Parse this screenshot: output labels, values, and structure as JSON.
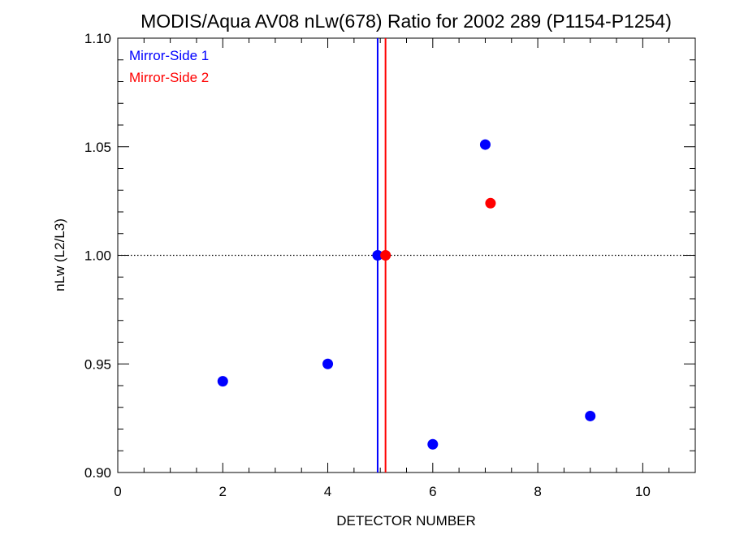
{
  "chart_data": {
    "type": "scatter",
    "title": "MODIS/Aqua AV08 nLw(678) Ratio for 2002 289 (P1154-P1254)",
    "xlabel": "DETECTOR NUMBER",
    "ylabel": "nLw (L2/L3)",
    "xlim": [
      0,
      11
    ],
    "ylim": [
      0.9,
      1.1
    ],
    "x_ticks": [
      0,
      2,
      4,
      6,
      8,
      10
    ],
    "x_tick_labels": [
      "0",
      "2",
      "4",
      "6",
      "8",
      "10"
    ],
    "y_ticks": [
      0.9,
      0.95,
      1.0,
      1.05,
      1.1
    ],
    "y_tick_labels": [
      "0.90",
      "0.95",
      "1.00",
      "1.05",
      "1.10"
    ],
    "reference_line_y": 1.0,
    "legend_position": "top-left",
    "series": [
      {
        "name": "Mirror-Side 1",
        "color": "#0000ff",
        "vertical_line_x": 4.95,
        "points": [
          {
            "x": 2,
            "y": 0.942
          },
          {
            "x": 4,
            "y": 0.95
          },
          {
            "x": 4.95,
            "y": 1.0
          },
          {
            "x": 6,
            "y": 0.913
          },
          {
            "x": 7,
            "y": 1.051
          },
          {
            "x": 9,
            "y": 0.926
          }
        ]
      },
      {
        "name": "Mirror-Side 2",
        "color": "#ff0000",
        "vertical_line_x": 5.1,
        "points": [
          {
            "x": 5.1,
            "y": 1.0
          },
          {
            "x": 7.1,
            "y": 1.024
          }
        ]
      }
    ]
  }
}
